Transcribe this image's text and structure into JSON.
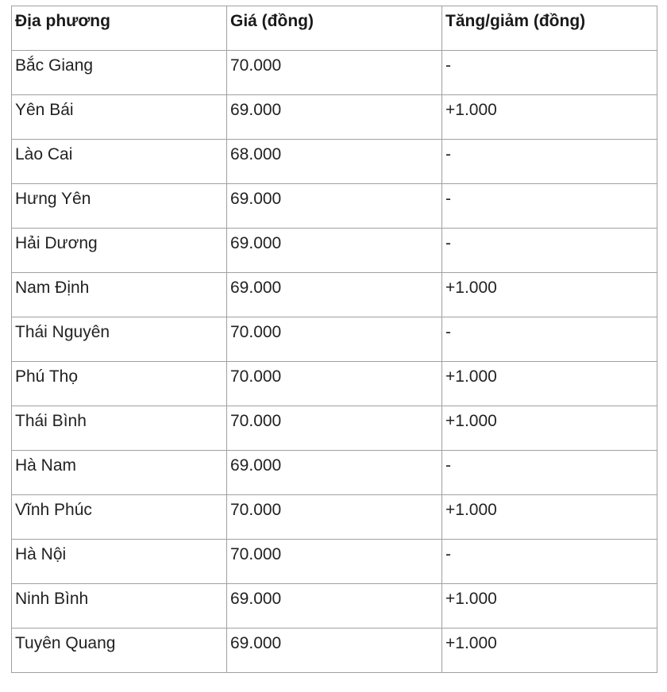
{
  "table": {
    "headers": [
      "Địa phương",
      "Giá (đồng)",
      "Tăng/giảm (đồng)"
    ],
    "rows": [
      [
        "Bắc Giang",
        "70.000",
        "-"
      ],
      [
        "Yên Bái",
        "69.000",
        "+1.000"
      ],
      [
        "Lào Cai",
        "68.000",
        "-"
      ],
      [
        "Hưng Yên",
        "69.000",
        "-"
      ],
      [
        "Hải Dương",
        "69.000",
        "-"
      ],
      [
        "Nam Định",
        "69.000",
        "+1.000"
      ],
      [
        "Thái Nguyên",
        "70.000",
        "-"
      ],
      [
        "Phú Thọ",
        "70.000",
        "+1.000"
      ],
      [
        "Thái Bình",
        "70.000",
        "+1.000"
      ],
      [
        "Hà Nam",
        "69.000",
        "-"
      ],
      [
        "Vĩnh Phúc",
        "70.000",
        "+1.000"
      ],
      [
        "Hà Nội",
        "70.000",
        "-"
      ],
      [
        "Ninh Bình",
        "69.000",
        "+1.000"
      ],
      [
        "Tuyên Quang",
        "69.000",
        "+1.000"
      ]
    ]
  }
}
